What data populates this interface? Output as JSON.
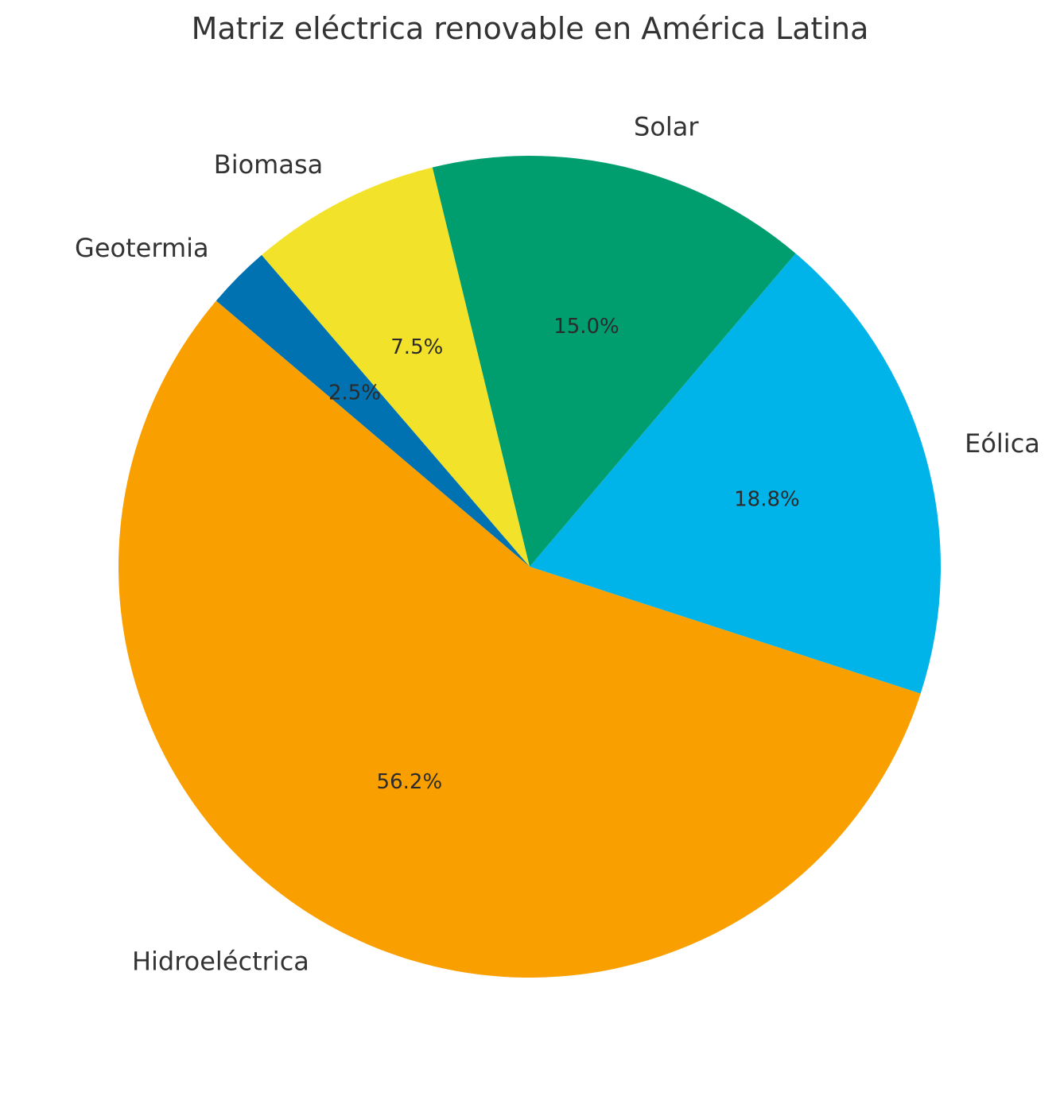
{
  "chart_data": {
    "type": "pie",
    "title": "Matriz eléctrica renovable en América Latina",
    "slices": [
      {
        "label": "Eólica",
        "value": 18.8,
        "pct_label": "18.8%",
        "color": "#00B4EA"
      },
      {
        "label": "Solar",
        "value": 15.0,
        "pct_label": "15.0%",
        "color": "#009E6F"
      },
      {
        "label": "Biomasa",
        "value": 7.5,
        "pct_label": "7.5%",
        "color": "#F2E22A"
      },
      {
        "label": "Geotermia",
        "value": 2.5,
        "pct_label": "2.5%",
        "color": "#0072B2"
      },
      {
        "label": "Hidroeléctrica",
        "value": 56.2,
        "pct_label": "56.2%",
        "color": "#F9A000"
      }
    ],
    "start_angle_deg": -18,
    "direction": "counterclockwise",
    "legend": "none"
  }
}
